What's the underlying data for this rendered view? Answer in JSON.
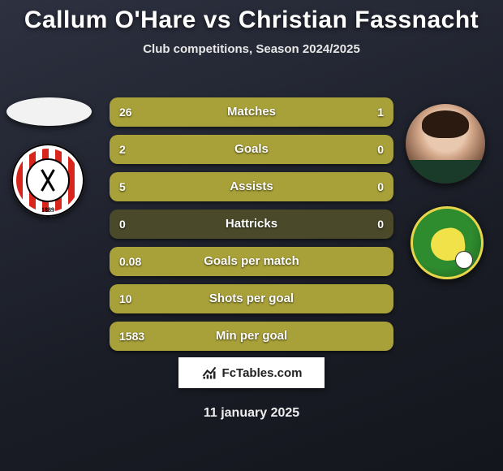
{
  "title": "Callum O'Hare vs Christian Fassnacht",
  "subtitle": "Club competitions, Season 2024/2025",
  "date": "11 january 2025",
  "footer_brand": "FcTables.com",
  "players": {
    "left": {
      "name": "Callum O'Hare",
      "club": "Sheffield United",
      "club_founded": "1889"
    },
    "right": {
      "name": "Christian Fassnacht",
      "club": "Norwich City"
    }
  },
  "colors": {
    "bar_fill": "#a8a038",
    "bar_track": "#4a4a2a",
    "background_top": "#2d3140",
    "background_bottom": "#14161d",
    "text": "#ffffff"
  },
  "font": {
    "family": "Arial Black",
    "title_size": 30,
    "label_size": 15,
    "value_size": 14
  },
  "bars": [
    {
      "label": "Matches",
      "left": "26",
      "right": "1",
      "left_pct": 96.3,
      "right_pct": 3.7
    },
    {
      "label": "Goals",
      "left": "2",
      "right": "0",
      "left_pct": 100,
      "right_pct": 0
    },
    {
      "label": "Assists",
      "left": "5",
      "right": "0",
      "left_pct": 100,
      "right_pct": 0
    },
    {
      "label": "Hattricks",
      "left": "0",
      "right": "0",
      "left_pct": 0,
      "right_pct": 0
    },
    {
      "label": "Goals per match",
      "left": "0.08",
      "left_pct": 100
    },
    {
      "label": "Shots per goal",
      "left": "10",
      "left_pct": 100
    },
    {
      "label": "Min per goal",
      "left": "1583",
      "left_pct": 100
    }
  ]
}
